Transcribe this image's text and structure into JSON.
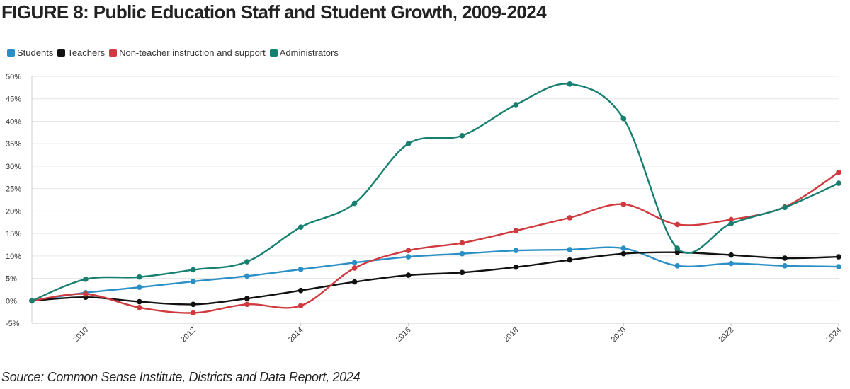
{
  "title": "FIGURE 8: Public Education Staff and Student Growth, 2009-2024",
  "source": "Source: Common Sense Institute, Districts and Data Report, 2024",
  "chart_data": {
    "type": "line",
    "title": "FIGURE 8: Public Education Staff and Student Growth, 2009-2024",
    "xlabel": "",
    "ylabel": "",
    "x": [
      2009,
      2010,
      2011,
      2012,
      2013,
      2014,
      2015,
      2016,
      2017,
      2018,
      2019,
      2020,
      2021,
      2022,
      2023,
      2024
    ],
    "x_ticks": [
      "2010",
      "2012",
      "2014",
      "2016",
      "2018",
      "2020",
      "2022",
      "2024"
    ],
    "xlim": [
      2009,
      2024
    ],
    "ylim": [
      -5,
      50
    ],
    "y_ticks": [
      -5,
      0,
      5,
      10,
      15,
      20,
      25,
      30,
      35,
      40,
      45,
      50
    ],
    "y_tick_labels": [
      "-5%",
      "0%",
      "5%",
      "10%",
      "15%",
      "20%",
      "25%",
      "30%",
      "35%",
      "40%",
      "45%",
      "50%"
    ],
    "grid": true,
    "legend_position": "top-left",
    "series": [
      {
        "name": "Students",
        "color": "#2b8fc7",
        "values": [
          0,
          1.8,
          3.0,
          4.3,
          5.5,
          7.0,
          8.5,
          9.8,
          10.5,
          11.2,
          11.4,
          11.7,
          7.8,
          8.3,
          7.8,
          7.6
        ]
      },
      {
        "name": "Teachers",
        "color": "#111111",
        "values": [
          0,
          0.8,
          -0.2,
          -0.8,
          0.5,
          2.3,
          4.2,
          5.7,
          6.3,
          7.5,
          9.1,
          10.5,
          10.8,
          10.2,
          9.5,
          9.8
        ]
      },
      {
        "name": "Non-teacher instruction and support",
        "color": "#d03a3f",
        "values": [
          0,
          1.5,
          -1.5,
          -2.7,
          -0.8,
          -1.1,
          7.3,
          11.2,
          12.9,
          15.6,
          18.5,
          21.5,
          17.0,
          18.1,
          20.9,
          28.6
        ]
      },
      {
        "name": "Administrators",
        "color": "#177f70",
        "values": [
          0,
          4.8,
          5.3,
          6.9,
          8.7,
          16.4,
          21.7,
          35.0,
          36.8,
          43.7,
          48.3,
          40.6,
          11.7,
          17.2,
          20.8,
          26.2
        ]
      }
    ]
  }
}
